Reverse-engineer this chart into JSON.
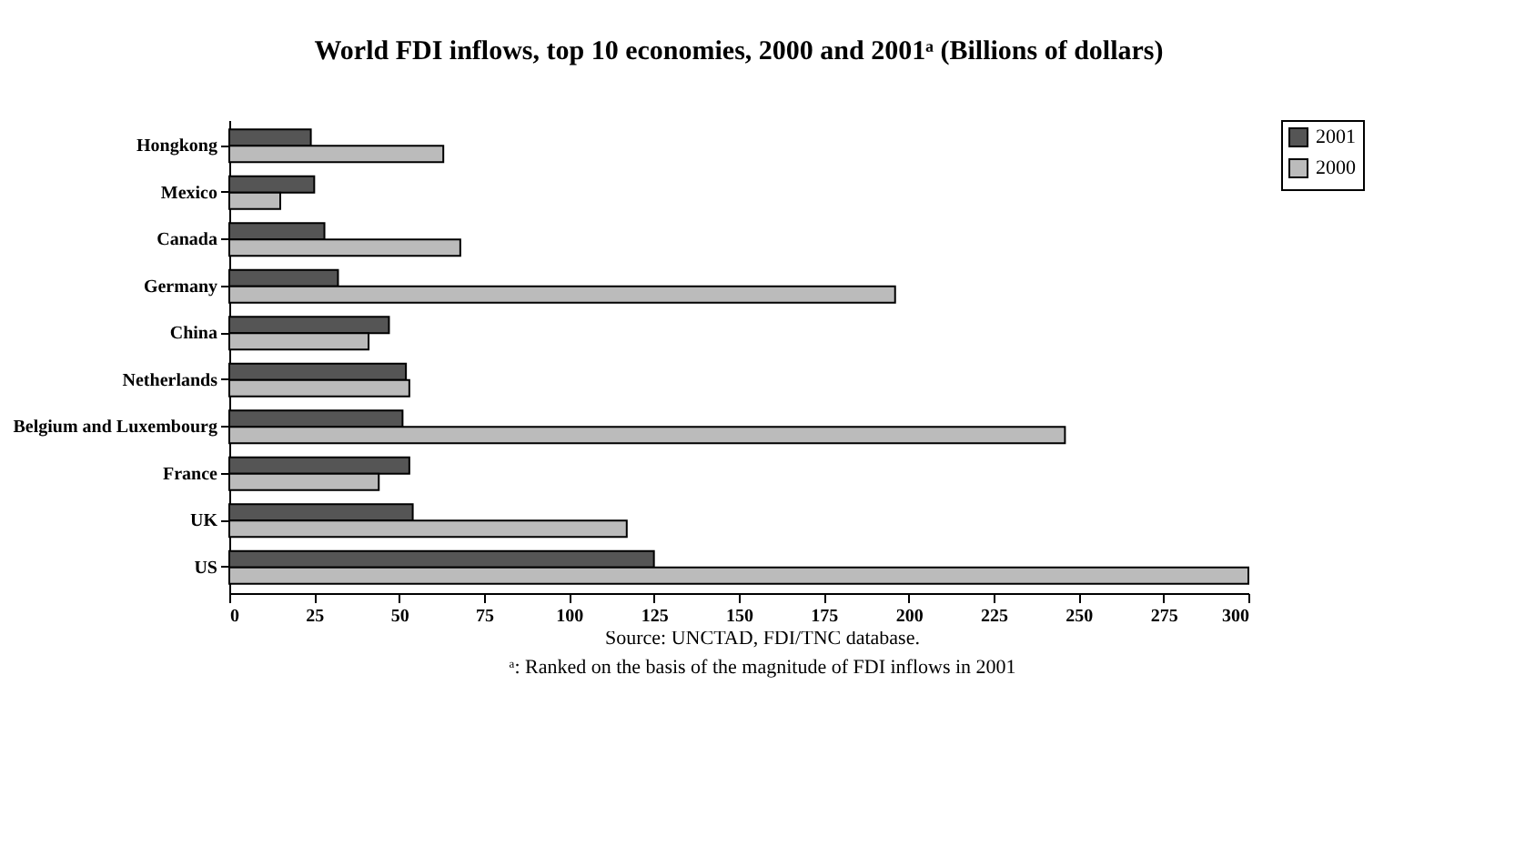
{
  "chart_data": {
    "type": "bar",
    "orientation": "horizontal",
    "title": "World FDI inflows, top 10 economies, 2000 and 2001ᵃ (Billions of dollars)",
    "categories": [
      "Hongkong",
      "Mexico",
      "Canada",
      "Germany",
      "China",
      "Netherlands",
      "Belgium and Luxembourg",
      "France",
      "UK",
      "US"
    ],
    "series": [
      {
        "name": "2001",
        "color": "#555555",
        "values": [
          24,
          25,
          28,
          32,
          47,
          52,
          51,
          53,
          54,
          125
        ]
      },
      {
        "name": "2000",
        "color": "#bbbbbb",
        "values": [
          63,
          15,
          68,
          196,
          41,
          53,
          246,
          44,
          117,
          300
        ]
      }
    ],
    "xlim": [
      0,
      300
    ],
    "xticks": [
      0,
      25,
      50,
      75,
      100,
      125,
      150,
      175,
      200,
      225,
      250,
      275,
      300
    ],
    "grid": false,
    "legend": "right",
    "annotations": [
      "Source: UNCTAD, FDI/TNC database.",
      "ᵃ: Ranked on the basis of the magnitude of FDI inflows in 2001"
    ]
  }
}
